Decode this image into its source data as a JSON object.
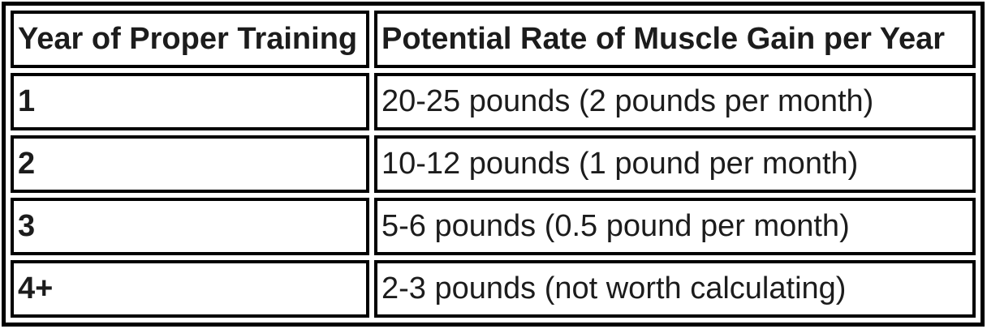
{
  "table": {
    "columns": [
      {
        "label": "Year of Proper Training"
      },
      {
        "label": "Potential Rate of Muscle Gain per Year"
      }
    ],
    "rows": [
      {
        "year": "1",
        "rate": "20-25 pounds (2 pounds per month)"
      },
      {
        "year": "2",
        "rate": "10-12 pounds (1 pound per month)"
      },
      {
        "year": "3",
        "rate": "5-6 pounds (0.5 pound per month)"
      },
      {
        "year": "4+",
        "rate": "2-3 pounds (not worth calculating)"
      }
    ],
    "colors": {
      "border": "#000000",
      "text": "#1c1c1c",
      "background": "#ffffff"
    }
  }
}
